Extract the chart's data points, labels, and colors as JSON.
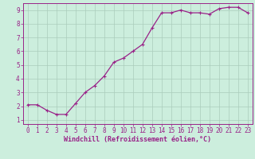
{
  "x": [
    0,
    1,
    2,
    3,
    4,
    5,
    6,
    7,
    8,
    9,
    10,
    11,
    12,
    13,
    14,
    15,
    16,
    17,
    18,
    19,
    20,
    21,
    22,
    23
  ],
  "y": [
    2.1,
    2.1,
    1.7,
    1.4,
    1.4,
    2.2,
    3.0,
    3.5,
    4.2,
    5.2,
    5.5,
    6.0,
    6.5,
    7.7,
    8.8,
    8.8,
    9.0,
    8.8,
    8.8,
    8.7,
    9.1,
    9.2,
    9.2,
    8.8
  ],
  "line_color": "#992288",
  "marker": "+",
  "marker_size": 3.5,
  "marker_linewidth": 0.8,
  "line_width": 0.9,
  "background_color": "#cceedd",
  "grid_color": "#aaccbb",
  "axis_color": "#992288",
  "tick_color": "#992288",
  "xlabel": "Windchill (Refroidissement éolien,°C)",
  "ylabel": "",
  "xlim": [
    -0.5,
    23.5
  ],
  "ylim": [
    0.7,
    9.5
  ],
  "yticks": [
    1,
    2,
    3,
    4,
    5,
    6,
    7,
    8,
    9
  ],
  "xticks": [
    0,
    1,
    2,
    3,
    4,
    5,
    6,
    7,
    8,
    9,
    10,
    11,
    12,
    13,
    14,
    15,
    16,
    17,
    18,
    19,
    20,
    21,
    22,
    23
  ],
  "font_size": 5.5,
  "xlabel_fontsize": 6.0
}
